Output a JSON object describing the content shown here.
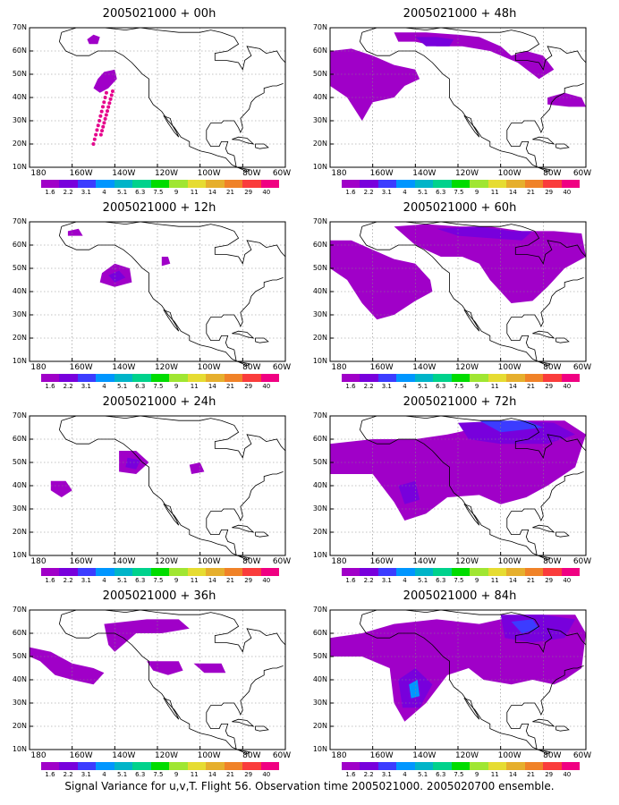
{
  "panels": [
    {
      "title": "2005021000 + 00h"
    },
    {
      "title": "2005021000 + 48h"
    },
    {
      "title": "2005021000 + 12h"
    },
    {
      "title": "2005021000 + 60h"
    },
    {
      "title": "2005021000 + 24h"
    },
    {
      "title": "2005021000 + 72h"
    },
    {
      "title": "2005021000 + 36h"
    },
    {
      "title": "2005021000 + 84h"
    }
  ],
  "lat_labels": [
    "70N",
    "60N",
    "50N",
    "40N",
    "30N",
    "20N",
    "10N"
  ],
  "lon_labels": [
    "180",
    "160W",
    "140W",
    "120W",
    "100W",
    "80W",
    "60W"
  ],
  "colorbar": {
    "labels": [
      "1.6",
      "2.2",
      "3.1",
      "4",
      "5.1",
      "6.3",
      "7.5",
      "9",
      "11",
      "14",
      "21",
      "29",
      "40"
    ],
    "colors": [
      "#a000c8",
      "#7800dc",
      "#3c3cff",
      "#0096ff",
      "#00b4c8",
      "#00d28c",
      "#00dc00",
      "#a0e632",
      "#e6dc32",
      "#e6af2d",
      "#f08228",
      "#fa3c3c",
      "#f00082"
    ]
  },
  "map_colors": {
    "c1": "#a000c8",
    "c2": "#7800dc",
    "c3": "#3c3cff",
    "c4": "#0096ff",
    "dots": "#e6008c"
  },
  "caption": "Signal Variance for u,v,T. Flight 56. Observation time 2005021000. 2005020700 ensemble."
}
